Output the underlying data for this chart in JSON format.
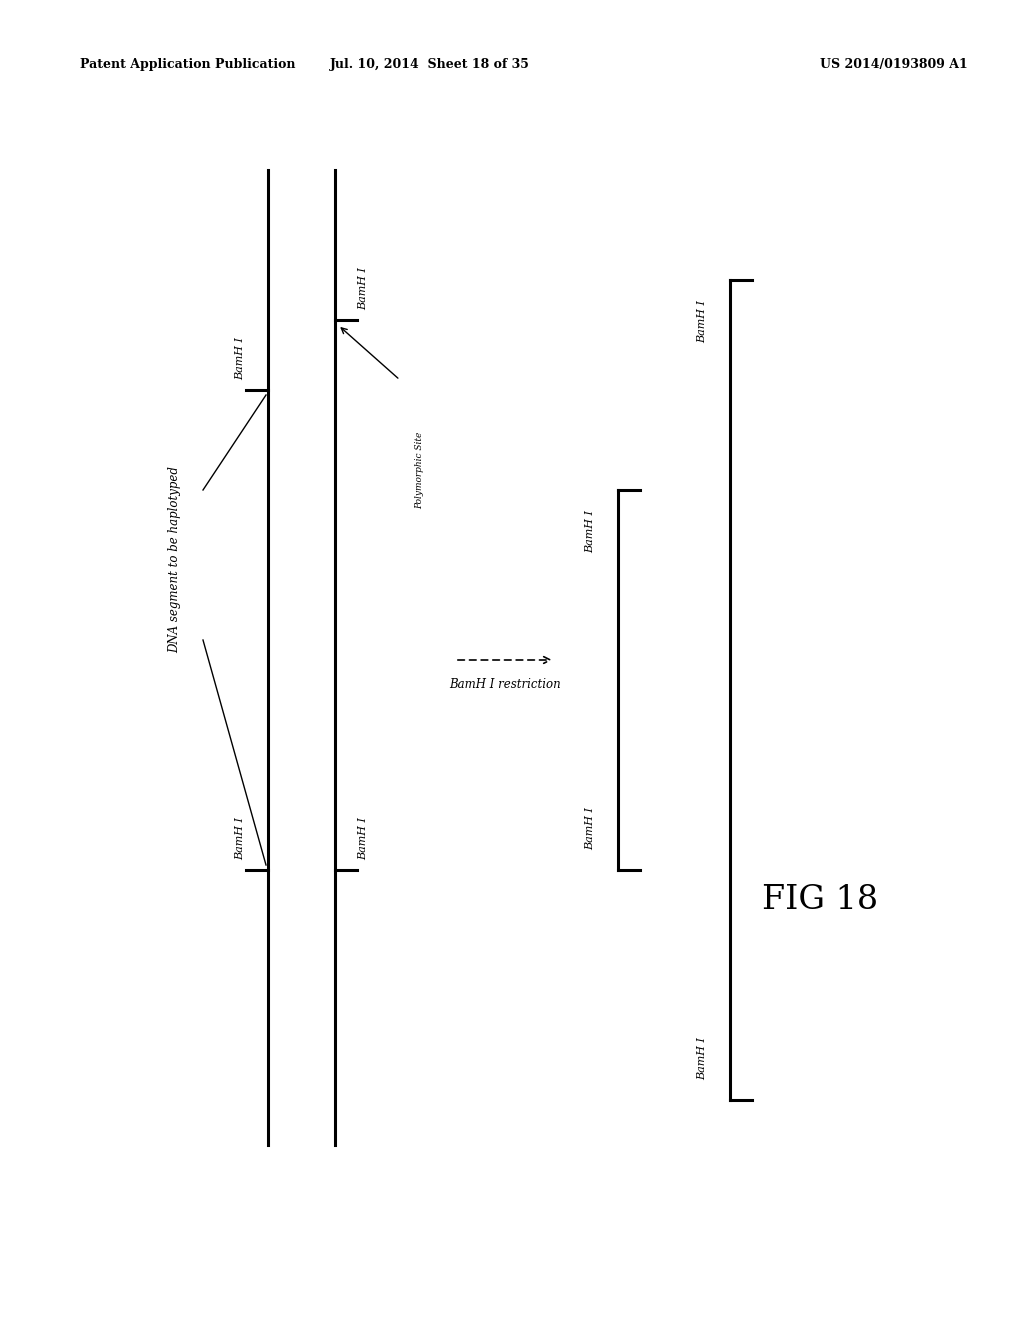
{
  "header_left": "Patent Application Publication",
  "header_mid": "Jul. 10, 2014  Sheet 18 of 35",
  "header_right": "US 2014/0193809 A1",
  "fig_label": "FIG 18",
  "bg_color": "#ffffff",
  "line_color": "#000000",
  "text_color": "#000000",
  "header_fontsize": 9,
  "fig_fontsize": 24,
  "label_fontsize": 8,
  "rotated_label_fontsize": 8,
  "dna_label": "DNA segment to be haplotyped",
  "restriction_label": "BamH I restriction",
  "polymorphic_label": "Polymorphic Site"
}
